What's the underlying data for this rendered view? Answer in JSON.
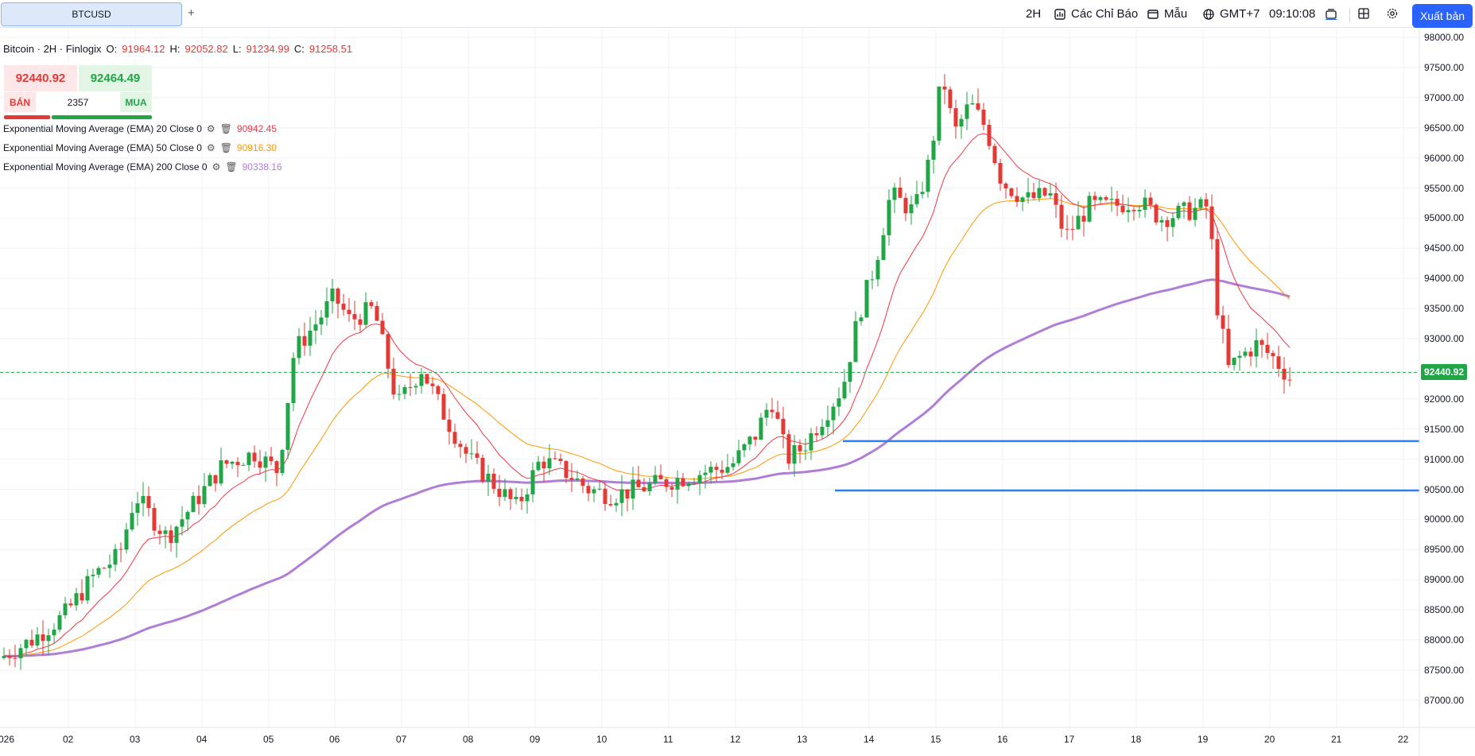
{
  "toolbar": {
    "symbol_tab": "BTCUSD",
    "add_tab": "+",
    "interval": "2H",
    "indicators_label": "Các Chỉ Báo",
    "templates_label": "Mẫu",
    "timezone": "GMT+7",
    "clock": "09:10:08",
    "publish_label": "Xuất bản"
  },
  "legend": {
    "title": "Bitcoin · 2H · Finlogix",
    "o_label": "O:",
    "o_value": "91964.12",
    "h_label": "H:",
    "h_value": "92052.82",
    "l_label": "L:",
    "l_value": "91234.99",
    "c_label": "C:",
    "c_value": "91258.51"
  },
  "trade": {
    "sell_price": "92440.92",
    "buy_price": "92464.49",
    "sell_label": "BÁN",
    "buy_label": "MUA",
    "spread": "2357"
  },
  "indicators": [
    {
      "label": "Exponential Moving Average (EMA) 20 Close 0",
      "value": "90942.45",
      "color": "#f23645"
    },
    {
      "label": "Exponential Moving Average (EMA) 50 Close 0",
      "value": "90916.30",
      "color": "#ff9800"
    },
    {
      "label": "Exponential Moving Average (EMA) 200 Close 0",
      "value": "90338.16",
      "color": "#b07ed6"
    }
  ],
  "price_axis": {
    "labels": [
      "98000.00",
      "97500.00",
      "97000.00",
      "96500.00",
      "96000.00",
      "95500.00",
      "95000.00",
      "94500.00",
      "94000.00",
      "93500.00",
      "93000.00",
      "92000.00",
      "91500.00",
      "91000.00",
      "90500.00",
      "90000.00",
      "89500.00",
      "89000.00",
      "88500.00",
      "88000.00",
      "87500.00",
      "87000.00"
    ],
    "current_price": "92440.92"
  },
  "time_axis": {
    "labels": [
      "026",
      "02",
      "03",
      "04",
      "05",
      "06",
      "07",
      "08",
      "09",
      "10",
      "11",
      "12",
      "13",
      "14",
      "15",
      "16",
      "17",
      "18",
      "19",
      "20",
      "21",
      "22"
    ]
  },
  "chart_data": {
    "type": "candlestick",
    "symbol": "BTCUSD",
    "interval": "2H",
    "ylim": [
      87000,
      98000
    ],
    "grid": true,
    "horizontal_levels": [
      91300,
      90480
    ],
    "current_price": 92440.92,
    "ema_last_values": {
      "ema20": 90942.45,
      "ema50": 90916.3,
      "ema200": 90338.16
    },
    "colors": {
      "up": "#20a646",
      "down": "#e53935",
      "ema20": "#f23645",
      "ema50": "#ff9800",
      "ema200": "#b07ed6",
      "level": "#2f80ed"
    }
  }
}
